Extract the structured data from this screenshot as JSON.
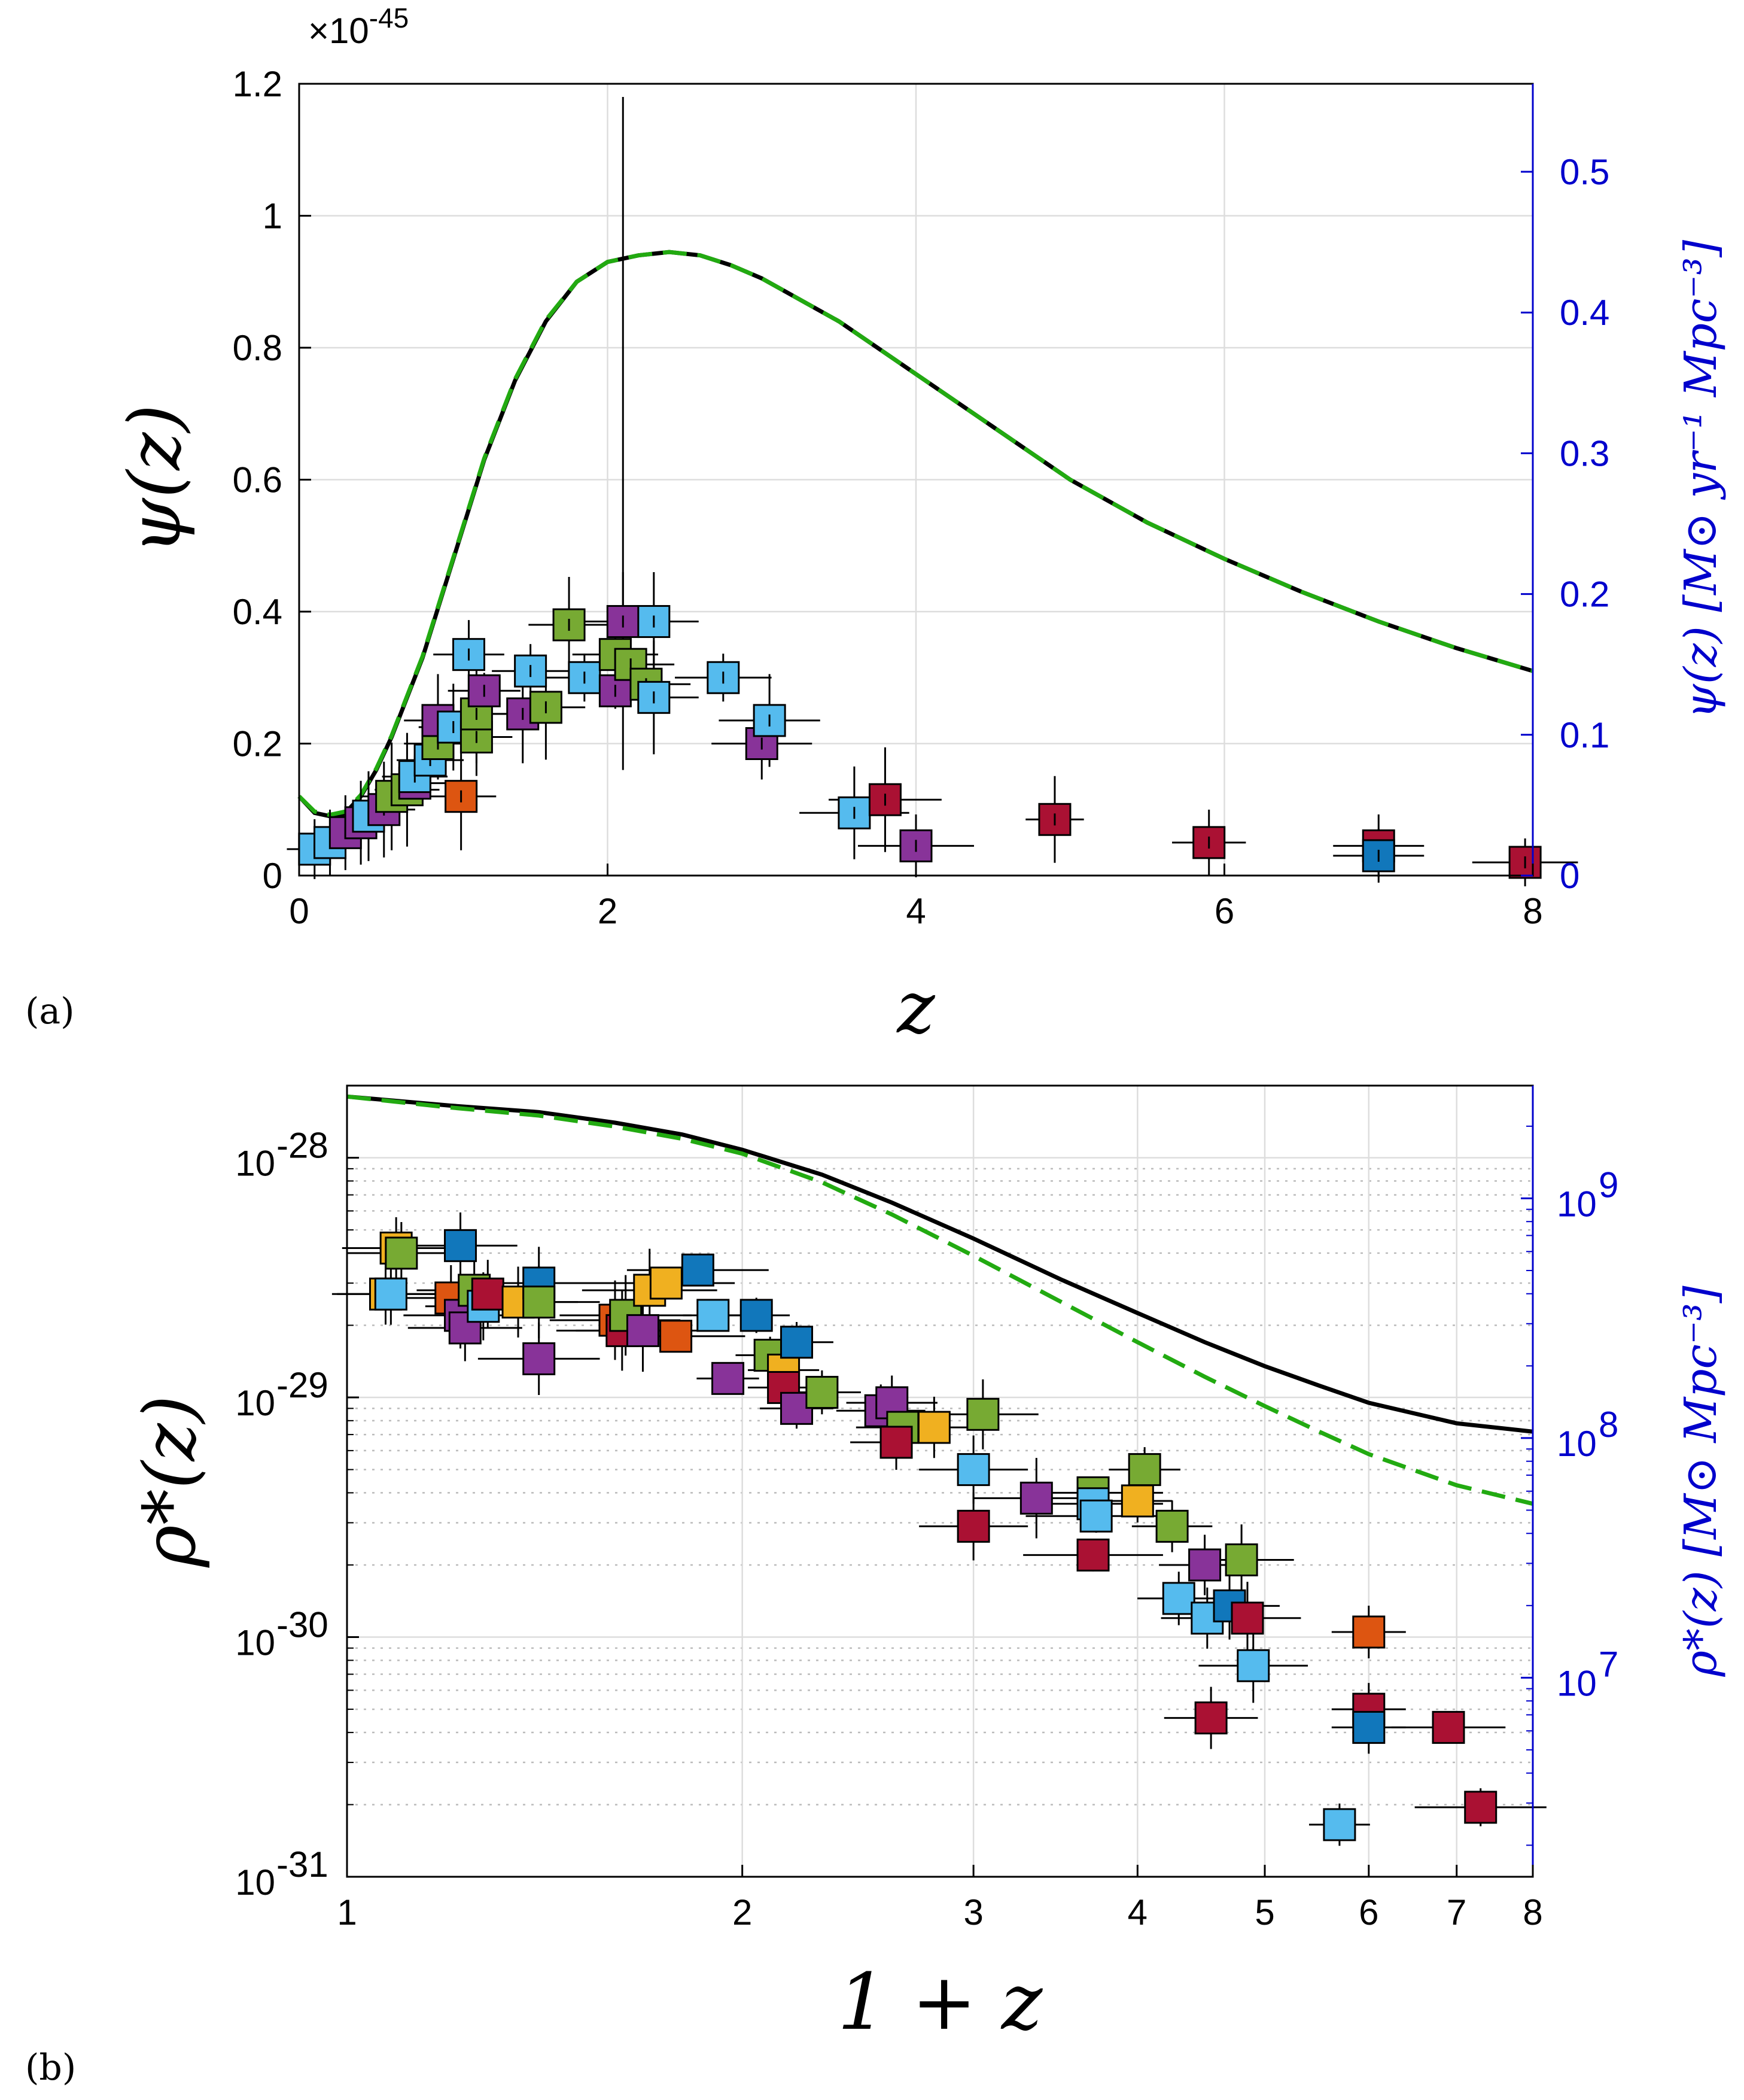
{
  "chart_data": [
    {
      "panel_label": "(a)",
      "type": "scatter",
      "xlabel": "z",
      "ylabel": "ψ(z)",
      "y2label": "ψ(z) [M⊙ yr⁻¹ Mpc⁻³]",
      "xlim": [
        0,
        8
      ],
      "ylim": [
        0,
        1.2e-45
      ],
      "y2lim": [
        0,
        0.5625
      ],
      "multiplier_label": "×10",
      "multiplier_exponent": "-45",
      "xticks": [
        "0",
        "2",
        "4",
        "6",
        "8"
      ],
      "yticks": [
        "0",
        "0.2",
        "0.4",
        "0.6",
        "0.8",
        "1",
        "1.2"
      ],
      "y2ticks": [
        "0",
        "0.1",
        "0.2",
        "0.3",
        "0.4",
        "0.5"
      ],
      "grid": true,
      "curves": {
        "solid_black": {
          "x": [
            0.0,
            0.1,
            0.2,
            0.3,
            0.4,
            0.5,
            0.6,
            0.8,
            1.0,
            1.2,
            1.4,
            1.6,
            1.8,
            2.0,
            2.2,
            2.4,
            2.6,
            2.8,
            3.0,
            3.5,
            4.0,
            4.5,
            5.0,
            5.5,
            6.0,
            6.5,
            7.0,
            7.5,
            8.0
          ],
          "y": [
            0.12,
            0.095,
            0.09,
            0.095,
            0.12,
            0.16,
            0.21,
            0.33,
            0.48,
            0.63,
            0.75,
            0.84,
            0.9,
            0.93,
            0.94,
            0.945,
            0.94,
            0.925,
            0.905,
            0.84,
            0.76,
            0.68,
            0.6,
            0.535,
            0.48,
            0.43,
            0.385,
            0.345,
            0.31
          ]
        },
        "dashed_green": {
          "x": [
            0.0,
            0.1,
            0.2,
            0.3,
            0.4,
            0.5,
            0.6,
            0.8,
            1.0,
            1.2,
            1.4,
            1.6,
            1.8,
            2.0,
            2.2,
            2.4,
            2.6,
            2.8,
            3.0,
            3.5,
            4.0,
            4.5,
            5.0,
            5.5,
            6.0,
            6.5,
            7.0,
            7.5,
            8.0
          ],
          "y": [
            0.12,
            0.097,
            0.092,
            0.097,
            0.122,
            0.162,
            0.212,
            0.332,
            0.482,
            0.632,
            0.752,
            0.842,
            0.9,
            0.93,
            0.94,
            0.945,
            0.94,
            0.925,
            0.905,
            0.84,
            0.76,
            0.68,
            0.6,
            0.535,
            0.48,
            0.43,
            0.385,
            0.345,
            0.31
          ]
        }
      },
      "points": [
        {
          "x": 0.1,
          "y": 0.04,
          "c": "#55bbee"
        },
        {
          "x": 0.2,
          "y": 0.05,
          "c": "#55bbee"
        },
        {
          "x": 0.3,
          "y": 0.065,
          "c": "#883399"
        },
        {
          "x": 0.4,
          "y": 0.08,
          "c": "#883399"
        },
        {
          "x": 0.45,
          "y": 0.09,
          "c": "#55bbee"
        },
        {
          "x": 0.55,
          "y": 0.1,
          "c": "#883399"
        },
        {
          "x": 0.6,
          "y": 0.12,
          "c": "#77aa33"
        },
        {
          "x": 0.7,
          "y": 0.13,
          "c": "#77aa33"
        },
        {
          "x": 0.75,
          "y": 0.14,
          "c": "#883399"
        },
        {
          "x": 0.75,
          "y": 0.15,
          "c": "#55bbee"
        },
        {
          "x": 0.85,
          "y": 0.175,
          "c": "#55bbee"
        },
        {
          "x": 0.9,
          "y": 0.2,
          "c": "#77aa33"
        },
        {
          "x": 0.9,
          "y": 0.235,
          "c": "#883399"
        },
        {
          "x": 1.0,
          "y": 0.225,
          "c": "#55bbee"
        },
        {
          "x": 1.05,
          "y": 0.12,
          "c": "#dd5511"
        },
        {
          "x": 1.1,
          "y": 0.335,
          "c": "#55bbee"
        },
        {
          "x": 1.15,
          "y": 0.21,
          "c": "#77aa33"
        },
        {
          "x": 1.15,
          "y": 0.245,
          "c": "#77aa33"
        },
        {
          "x": 1.2,
          "y": 0.28,
          "c": "#883399"
        },
        {
          "x": 1.45,
          "y": 0.245,
          "c": "#883399"
        },
        {
          "x": 1.5,
          "y": 0.31,
          "c": "#55bbee"
        },
        {
          "x": 1.6,
          "y": 0.255,
          "c": "#77aa33"
        },
        {
          "x": 1.75,
          "y": 0.38,
          "c": "#77aa33"
        },
        {
          "x": 1.85,
          "y": 0.3,
          "c": "#55bbee"
        },
        {
          "x": 2.05,
          "y": 0.335,
          "c": "#77aa33"
        },
        {
          "x": 2.05,
          "y": 0.28,
          "c": "#883399"
        },
        {
          "x": 2.1,
          "y": 0.385,
          "c": "#883399"
        },
        {
          "x": 2.15,
          "y": 0.32,
          "c": "#77aa33"
        },
        {
          "x": 2.25,
          "y": 0.29,
          "c": "#77aa33"
        },
        {
          "x": 2.3,
          "y": 0.27,
          "c": "#55bbee"
        },
        {
          "x": 2.3,
          "y": 0.385,
          "c": "#55bbee"
        },
        {
          "x": 2.75,
          "y": 0.3,
          "c": "#55bbee"
        },
        {
          "x": 3.0,
          "y": 0.2,
          "c": "#883399"
        },
        {
          "x": 3.05,
          "y": 0.235,
          "c": "#55bbee"
        },
        {
          "x": 3.6,
          "y": 0.095,
          "c": "#55bbee"
        },
        {
          "x": 3.8,
          "y": 0.115,
          "c": "#aa1133"
        },
        {
          "x": 4.0,
          "y": 0.045,
          "c": "#883399"
        },
        {
          "x": 4.9,
          "y": 0.085,
          "c": "#aa1133"
        },
        {
          "x": 5.9,
          "y": 0.05,
          "c": "#aa1133"
        },
        {
          "x": 7.0,
          "y": 0.045,
          "c": "#aa1133"
        },
        {
          "x": 7.0,
          "y": 0.03,
          "c": "#1177bb"
        },
        {
          "x": 7.95,
          "y": 0.02,
          "c": "#aa1133"
        }
      ]
    },
    {
      "panel_label": "(b)",
      "type": "scatter",
      "xlabel": "1 + z",
      "ylabel": "ρ*(z)",
      "y2label": "ρ*(z) [M⊙ Mpc⁻³]",
      "xscale": "log",
      "yscale": "log",
      "xlim": [
        1,
        8
      ],
      "ylim": [
        1e-31,
        2e-28
      ],
      "xticks": [
        "1",
        "2",
        "3",
        "4",
        "5",
        "6",
        "7",
        "8"
      ],
      "yticks": [
        {
          "base": "10",
          "exp": "-31"
        },
        {
          "base": "10",
          "exp": "-30"
        },
        {
          "base": "10",
          "exp": "-29"
        },
        {
          "base": "10",
          "exp": "-28"
        }
      ],
      "y2ticks": [
        {
          "base": "10",
          "exp": "7"
        },
        {
          "base": "10",
          "exp": "8"
        },
        {
          "base": "10",
          "exp": "9"
        }
      ],
      "grid": true,
      "curves": {
        "solid_black": {
          "x": [
            1.0,
            1.2,
            1.4,
            1.6,
            1.8,
            2.0,
            2.3,
            2.6,
            3.0,
            3.5,
            4.0,
            4.5,
            5.0,
            5.5,
            6.0,
            7.0,
            8.0
          ],
          "y": [
            1.8e-28,
            1.65e-28,
            1.55e-28,
            1.4e-28,
            1.25e-28,
            1.08e-28,
            8.5e-29,
            6.5e-29,
            4.6e-29,
            3.1e-29,
            2.25e-29,
            1.7e-29,
            1.35e-29,
            1.12e-29,
            9.5e-30,
            7.8e-30,
            7.2e-30
          ]
        },
        "dashed_green": {
          "x": [
            1.0,
            1.2,
            1.4,
            1.6,
            1.8,
            2.0,
            2.3,
            2.6,
            3.0,
            3.5,
            4.0,
            4.5,
            5.0,
            5.5,
            6.0,
            7.0,
            8.0
          ],
          "y": [
            1.8e-28,
            1.62e-28,
            1.5e-28,
            1.35e-28,
            1.2e-28,
            1.04e-28,
            7.9e-29,
            5.8e-29,
            3.9e-29,
            2.5e-29,
            1.7e-29,
            1.22e-29,
            9.2e-30,
            7.2e-30,
            5.8e-30,
            4.3e-30,
            3.6e-30
          ]
        }
      },
      "points": [
        {
          "x": 1.07,
          "y": 2.7e-29,
          "c": "#f0b020"
        },
        {
          "x": 1.08,
          "y": 2.7e-29,
          "c": "#55bbee"
        },
        {
          "x": 1.09,
          "y": 4.2e-29,
          "c": "#f0b020"
        },
        {
          "x": 1.1,
          "y": 4e-29,
          "c": "#77aa33"
        },
        {
          "x": 1.22,
          "y": 4.3e-29,
          "c": "#1177bb"
        },
        {
          "x": 1.2,
          "y": 2.6e-29,
          "c": "#dd5511"
        },
        {
          "x": 1.22,
          "y": 2.2e-29,
          "c": "#883399"
        },
        {
          "x": 1.23,
          "y": 1.95e-29,
          "c": "#883399"
        },
        {
          "x": 1.25,
          "y": 2.8e-29,
          "c": "#77aa33"
        },
        {
          "x": 1.27,
          "y": 2.4e-29,
          "c": "#55bbee"
        },
        {
          "x": 1.28,
          "y": 2.7e-29,
          "c": "#aa1133"
        },
        {
          "x": 1.35,
          "y": 2.5e-29,
          "c": "#f0b020"
        },
        {
          "x": 1.4,
          "y": 3e-29,
          "c": "#1177bb"
        },
        {
          "x": 1.4,
          "y": 2.5e-29,
          "c": "#77aa33"
        },
        {
          "x": 1.4,
          "y": 1.45e-29,
          "c": "#883399"
        },
        {
          "x": 1.6,
          "y": 2.1e-29,
          "c": "#dd5511"
        },
        {
          "x": 1.62,
          "y": 1.9e-29,
          "c": "#aa1133"
        },
        {
          "x": 1.63,
          "y": 2.2e-29,
          "c": "#77aa33"
        },
        {
          "x": 1.68,
          "y": 1.9e-29,
          "c": "#883399"
        },
        {
          "x": 1.7,
          "y": 2.8e-29,
          "c": "#f0b020"
        },
        {
          "x": 1.75,
          "y": 3e-29,
          "c": "#f0b020"
        },
        {
          "x": 1.78,
          "y": 1.8e-29,
          "c": "#dd5511"
        },
        {
          "x": 1.85,
          "y": 3.4e-29,
          "c": "#1177bb"
        },
        {
          "x": 1.9,
          "y": 2.2e-29,
          "c": "#55bbee"
        },
        {
          "x": 1.95,
          "y": 1.2e-29,
          "c": "#883399"
        },
        {
          "x": 2.05,
          "y": 2.2e-29,
          "c": "#1177bb"
        },
        {
          "x": 2.1,
          "y": 1.5e-29,
          "c": "#77aa33"
        },
        {
          "x": 2.15,
          "y": 1.3e-29,
          "c": "#f0b020"
        },
        {
          "x": 2.15,
          "y": 1.1e-29,
          "c": "#aa1133"
        },
        {
          "x": 2.2,
          "y": 1.7e-29,
          "c": "#1177bb"
        },
        {
          "x": 2.2,
          "y": 9e-30,
          "c": "#883399"
        },
        {
          "x": 2.3,
          "y": 1.05e-29,
          "c": "#77aa33"
        },
        {
          "x": 2.55,
          "y": 8.8e-30,
          "c": "#883399"
        },
        {
          "x": 2.6,
          "y": 9.5e-30,
          "c": "#883399"
        },
        {
          "x": 2.65,
          "y": 7.5e-30,
          "c": "#77aa33"
        },
        {
          "x": 2.62,
          "y": 6.5e-30,
          "c": "#aa1133"
        },
        {
          "x": 2.8,
          "y": 7.5e-30,
          "c": "#f0b020"
        },
        {
          "x": 3.05,
          "y": 8.5e-30,
          "c": "#77aa33"
        },
        {
          "x": 3.0,
          "y": 5e-30,
          "c": "#55bbee"
        },
        {
          "x": 3.0,
          "y": 2.9e-30,
          "c": "#aa1133"
        },
        {
          "x": 3.35,
          "y": 3.8e-30,
          "c": "#883399"
        },
        {
          "x": 3.7,
          "y": 4e-30,
          "c": "#77aa33"
        },
        {
          "x": 3.7,
          "y": 3.6e-30,
          "c": "#55bbee"
        },
        {
          "x": 3.72,
          "y": 3.2e-30,
          "c": "#55bbee"
        },
        {
          "x": 3.7,
          "y": 2.2e-30,
          "c": "#aa1133"
        },
        {
          "x": 4.0,
          "y": 3.7e-30,
          "c": "#f0b020"
        },
        {
          "x": 4.05,
          "y": 5e-30,
          "c": "#77aa33"
        },
        {
          "x": 4.25,
          "y": 2.9e-30,
          "c": "#77aa33"
        },
        {
          "x": 4.3,
          "y": 1.45e-30,
          "c": "#55bbee"
        },
        {
          "x": 4.5,
          "y": 2e-30,
          "c": "#883399"
        },
        {
          "x": 4.52,
          "y": 1.2e-30,
          "c": "#55bbee"
        },
        {
          "x": 4.55,
          "y": 4.6e-31,
          "c": "#aa1133"
        },
        {
          "x": 4.8,
          "y": 2.1e-30,
          "c": "#77aa33"
        },
        {
          "x": 4.7,
          "y": 1.35e-30,
          "c": "#1177bb"
        },
        {
          "x": 4.85,
          "y": 1.2e-30,
          "c": "#aa1133"
        },
        {
          "x": 4.9,
          "y": 7.6e-31,
          "c": "#55bbee"
        },
        {
          "x": 5.7,
          "y": 1.65e-31,
          "c": "#55bbee"
        },
        {
          "x": 6.0,
          "y": 1.05e-30,
          "c": "#dd5511"
        },
        {
          "x": 6.0,
          "y": 5e-31,
          "c": "#aa1133"
        },
        {
          "x": 6.0,
          "y": 4.2e-31,
          "c": "#1177bb"
        },
        {
          "x": 6.9,
          "y": 4.2e-31,
          "c": "#aa1133"
        },
        {
          "x": 7.3,
          "y": 1.95e-31,
          "c": "#aa1133"
        }
      ]
    }
  ]
}
